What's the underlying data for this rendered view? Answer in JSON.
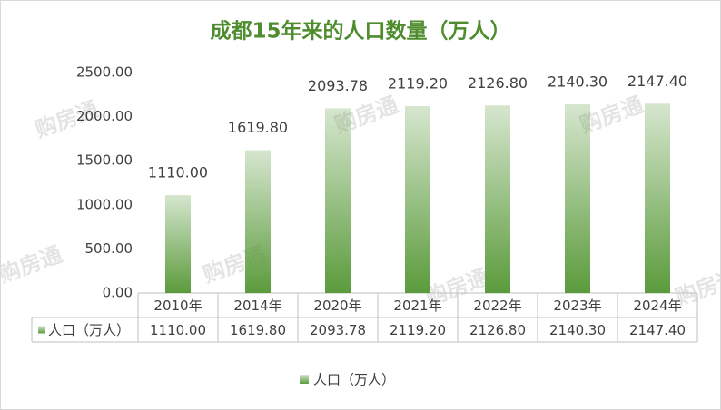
{
  "chart_data": {
    "type": "bar",
    "title": "成都15年来的人口数量（万人）",
    "categories": [
      "2010年",
      "2014年",
      "2020年",
      "2021年",
      "2022年",
      "2023年",
      "2024年"
    ],
    "series": [
      {
        "name": "人口（万人）",
        "color": "#5b9b3c",
        "values": [
          1110.0,
          1619.8,
          2093.78,
          2119.2,
          2126.8,
          2140.3,
          2147.4
        ],
        "value_labels": [
          "1110.00",
          "1619.80",
          "2093.78",
          "2119.20",
          "2126.80",
          "2140.30",
          "2147.40"
        ]
      }
    ],
    "ylim": [
      0,
      2500
    ],
    "yticks": [
      {
        "value": 0,
        "label": "0.00"
      },
      {
        "value": 500,
        "label": "500.00"
      },
      {
        "value": 1000,
        "label": "1000.00"
      },
      {
        "value": 1500,
        "label": "1500.00"
      },
      {
        "value": 2000,
        "label": "2000.00"
      },
      {
        "value": 2500,
        "label": "2500.00"
      }
    ],
    "grid": false,
    "legend": "bottom",
    "data_table": true,
    "watermark": "购房通"
  }
}
